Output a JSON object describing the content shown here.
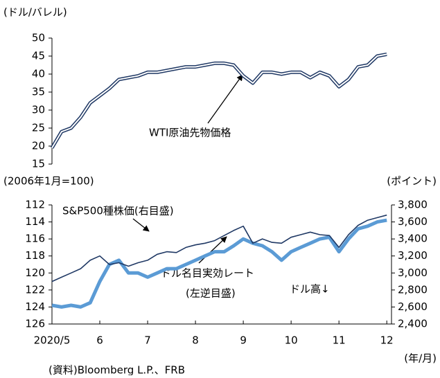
{
  "chart_data": [
    {
      "type": "line",
      "ylabel": "(ドル/バレル)",
      "annotation": "WTI原油先物価格",
      "xlim": [
        5,
        12.2
      ],
      "x": [
        5.0,
        5.2,
        5.4,
        5.6,
        5.8,
        6.0,
        6.2,
        6.4,
        6.6,
        6.8,
        7.0,
        7.2,
        7.4,
        7.6,
        7.8,
        8.0,
        8.2,
        8.4,
        8.6,
        8.8,
        9.0,
        9.2,
        9.4,
        9.6,
        9.8,
        10.0,
        10.2,
        10.4,
        10.6,
        10.8,
        11.0,
        11.2,
        11.4,
        11.6,
        11.8,
        12.0
      ],
      "ylim": [
        15,
        50
      ],
      "yticks": [
        15,
        20,
        25,
        30,
        35,
        40,
        45,
        50
      ],
      "series": [
        {
          "name": "WTI原油先物価格",
          "color": "#1f3864",
          "style": "double",
          "values": [
            19.5,
            24,
            25,
            28,
            32,
            34,
            36,
            38.5,
            39,
            39.5,
            40.5,
            40.5,
            41,
            41.5,
            42,
            42,
            42.5,
            43,
            43,
            42.5,
            39.5,
            37.5,
            40.5,
            40.5,
            40,
            40.5,
            40.5,
            39,
            40.5,
            39.5,
            36.5,
            38.5,
            42,
            42.5,
            45,
            45.5
          ]
        }
      ]
    },
    {
      "type": "line",
      "ylabel": "(2006年1月=100)",
      "y2label": "(ポイント)",
      "xlabel": "(年/月)",
      "annotations": [
        "S&P500種株価(右目盛)",
        "ドル名目実効レート",
        "(左逆目盛)",
        "ドル高↓"
      ],
      "xlim": [
        5,
        12.2
      ],
      "xticks": [
        {
          "value": 5,
          "label": "2020/5"
        },
        6,
        7,
        8,
        9,
        10,
        11,
        12
      ],
      "x": [
        5.0,
        5.2,
        5.4,
        5.6,
        5.8,
        6.0,
        6.2,
        6.4,
        6.6,
        6.8,
        7.0,
        7.2,
        7.4,
        7.6,
        7.8,
        8.0,
        8.2,
        8.4,
        8.6,
        8.8,
        9.0,
        9.2,
        9.4,
        9.6,
        9.8,
        10.0,
        10.2,
        10.4,
        10.6,
        10.8,
        11.0,
        11.2,
        11.4,
        11.6,
        11.8,
        12.0
      ],
      "ylim": [
        112,
        126
      ],
      "yreverse": true,
      "yticks": [
        112,
        114,
        116,
        118,
        120,
        122,
        124,
        126
      ],
      "y2lim": [
        2400,
        3800
      ],
      "y2ticks": [
        {
          "value": 2400,
          "label": "2,400"
        },
        {
          "value": 2600,
          "label": "2,600"
        },
        {
          "value": 2800,
          "label": "2,800"
        },
        {
          "value": 3000,
          "label": "3,000"
        },
        {
          "value": 3200,
          "label": "3,200"
        },
        {
          "value": 3400,
          "label": "3,400"
        },
        {
          "value": 3600,
          "label": "3,600"
        },
        {
          "value": 3800,
          "label": "3,800"
        }
      ],
      "series": [
        {
          "name": "ドル名目実効レート",
          "color": "#5b9bd5",
          "width": 5,
          "values": [
            123.8,
            124,
            123.8,
            124,
            123.5,
            121,
            119,
            118.5,
            120,
            120,
            120.5,
            120,
            119.5,
            119.5,
            119,
            118.5,
            118,
            117.5,
            117.5,
            116.8,
            116,
            116.5,
            116.8,
            117.5,
            118.5,
            117.5,
            117,
            116.5,
            116,
            115.8,
            117.5,
            116,
            114.8,
            114.5,
            114,
            113.8
          ]
        },
        {
          "name": "S&P500種株価",
          "color": "#1f3864",
          "width": 1.6,
          "axis": "y2",
          "values": [
            2900,
            2950,
            3000,
            3050,
            3150,
            3200,
            3100,
            3120,
            3080,
            3120,
            3150,
            3220,
            3250,
            3240,
            3300,
            3330,
            3350,
            3380,
            3440,
            3500,
            3550,
            3350,
            3400,
            3360,
            3350,
            3420,
            3450,
            3480,
            3450,
            3440,
            3300,
            3450,
            3560,
            3620,
            3650,
            3680
          ]
        }
      ]
    }
  ],
  "source": "(資料)Bloomberg L.P.、FRB"
}
